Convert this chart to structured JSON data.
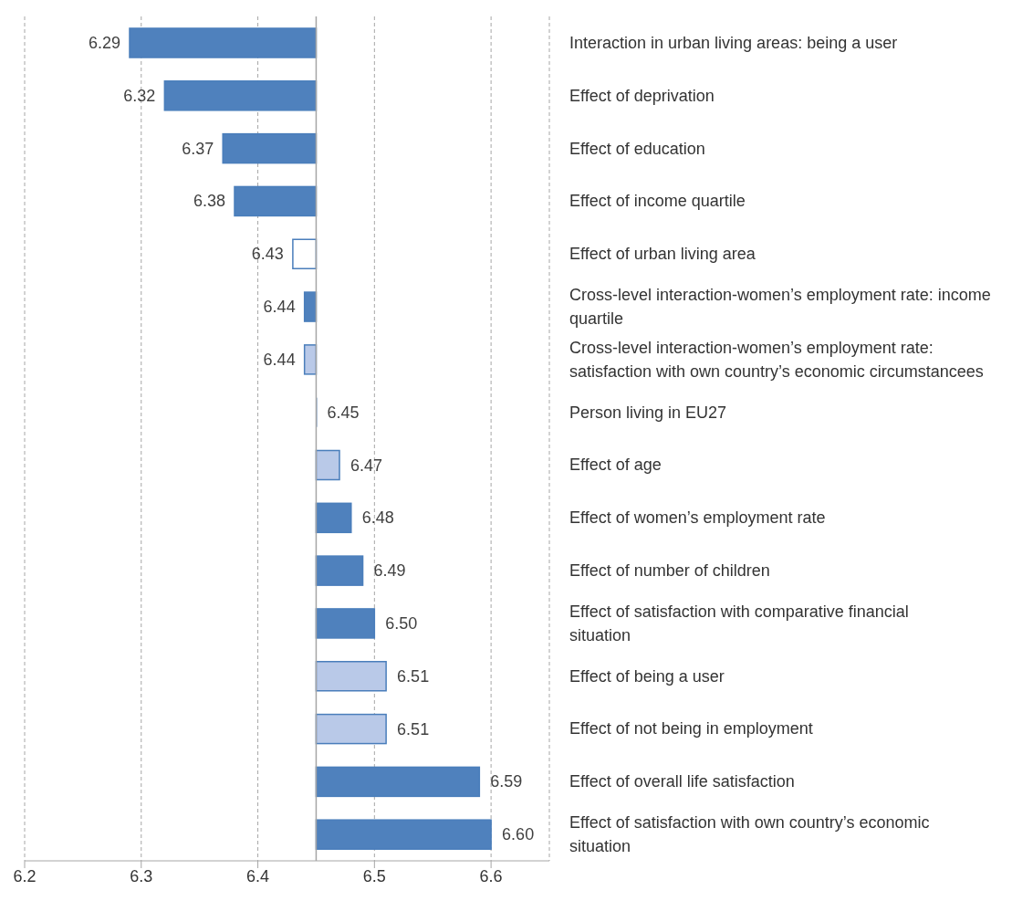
{
  "chart_data": {
    "type": "bar",
    "orientation": "horizontal",
    "categories": [
      "Interaction in urban living areas: being a user",
      "Effect of deprivation",
      "Effect of education",
      "Effect of income quartile",
      "Effect of urban living area",
      "Cross-level interaction-women’s employment rate: income quartile",
      "Cross-level interaction-women’s employment rate: satisfaction with own country’s economic circumstancees",
      "Person living in EU27",
      "Effect of age",
      "Effect of women’s employment rate",
      "Effect of number of children",
      "Effect of satisfaction with comparative financial situation",
      "Effect of being a user",
      "Effect of not being in employment",
      "Effect of overall life satisfaction",
      "Effect of satisfaction with own country’s economic situation"
    ],
    "base": [
      6.45,
      6.45,
      6.45,
      6.45,
      6.45,
      6.45,
      6.45,
      6.45,
      6.45,
      6.45,
      6.45,
      6.45,
      6.45,
      6.45,
      6.45,
      6.45
    ],
    "values": [
      -0.16,
      -0.13,
      -0.08,
      -0.07,
      -0.02,
      -0.01,
      -0.01,
      0,
      0.02,
      0.03,
      0.04,
      0.05,
      0.06,
      0.06,
      0.14,
      0.15
    ],
    "value_labels": [
      "6.29",
      "6.32",
      "6.37",
      "6.38",
      "6.43",
      "6.44",
      "6.44",
      "6.45",
      "6.47",
      "6.48",
      "6.49",
      "6.50",
      "6.51",
      "6.51",
      "6.59",
      "6.60"
    ],
    "color": "#4a7ebb",
    "colors": [
      "#4f81bd",
      "#4f81bd",
      "#4f81bd",
      "#4f81bd",
      "#ffffff",
      "#4f81bd",
      "#b9c9e8",
      "#4f81bd",
      "#b9c9e8",
      "#4f81bd",
      "#4f81bd",
      "#4f81bd",
      "#b9c9e8",
      "#b9c9e8",
      "#4f81bd",
      "#4f81bd"
    ],
    "xlim": [
      6.2,
      6.65
    ],
    "xticks": [
      6.2,
      6.3,
      6.4,
      6.5,
      6.6
    ],
    "ref_lines": [
      {
        "axis": "x",
        "value": 6.45,
        "color": "#a6a6a6"
      }
    ],
    "grid": "x",
    "tick_labels": "x"
  }
}
